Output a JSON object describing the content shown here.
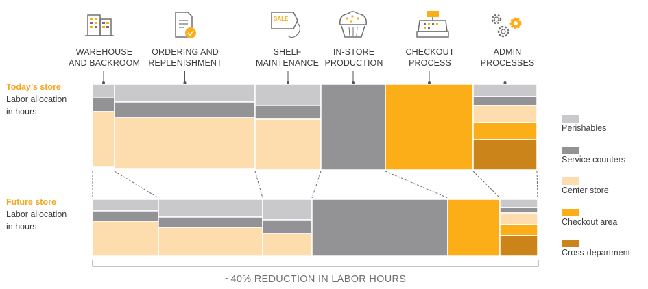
{
  "colors": {
    "perishables": "#c9c9cb",
    "service_counters": "#939396",
    "center_store": "#fddcad",
    "checkout_area": "#fbae17",
    "cross_department": "#cb8419",
    "accent": "#f5a623",
    "connector": "#6b6b6b"
  },
  "chart_data": {
    "type": "marimekko",
    "title": "",
    "categories": [
      {
        "label": [
          "WAREHOUSE",
          "AND BACKROOM"
        ],
        "icon": "warehouse-icon"
      },
      {
        "label": [
          "ORDERING AND",
          "REPLENISHMENT"
        ],
        "icon": "document-check-icon"
      },
      {
        "label": [
          "SHELF",
          "MAINTENANCE"
        ],
        "icon": "price-tag-icon"
      },
      {
        "label": [
          "IN-STORE",
          "PRODUCTION"
        ],
        "icon": "muffin-icon"
      },
      {
        "label": [
          "CHECKOUT",
          "PROCESS"
        ],
        "icon": "cash-register-icon"
      },
      {
        "label": [
          "ADMIN",
          "PROCESSES"
        ],
        "icon": "gears-icon"
      }
    ],
    "segments": [
      "Perishables",
      "Service counters",
      "Center store",
      "Checkout area",
      "Cross-department"
    ],
    "rows": [
      {
        "title": "Today’s store",
        "subtitle": [
          "Labor allocation",
          "in hours"
        ],
        "widths": [
          32,
          205,
          96,
          94,
          128,
          93
        ],
        "stacks": [
          [
            19,
            21,
            81,
            0,
            0
          ],
          [
            26,
            23,
            75,
            0,
            0
          ],
          [
            31,
            20,
            74,
            0,
            0
          ],
          [
            0,
            125,
            0,
            0,
            0
          ],
          [
            0,
            0,
            0,
            125,
            0
          ],
          [
            18,
            13,
            25,
            25,
            44
          ]
        ]
      },
      {
        "title": "Future store",
        "subtitle": [
          "Labor allocation",
          "in hours"
        ],
        "widths": [
          96,
          152,
          72,
          198,
          76,
          55
        ],
        "stacks": [
          [
            17,
            15,
            51,
            0,
            0
          ],
          [
            26,
            15,
            42,
            0,
            0
          ],
          [
            30,
            20,
            33,
            0,
            0
          ],
          [
            0,
            83,
            0,
            0,
            0
          ],
          [
            0,
            0,
            0,
            83,
            0
          ],
          [
            12,
            8,
            17,
            16,
            30
          ]
        ]
      }
    ],
    "footer": "~40% REDUCTION IN LABOR HOURS"
  }
}
